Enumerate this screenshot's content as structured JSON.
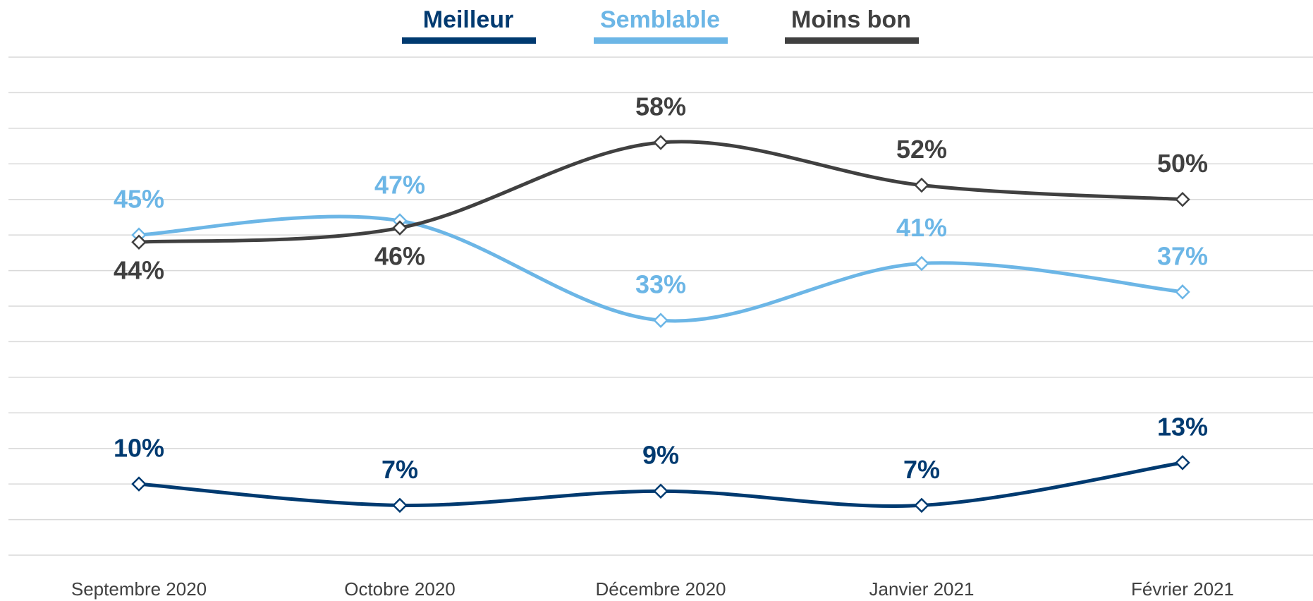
{
  "chart_data": {
    "type": "line",
    "categories": [
      "Septembre 2020",
      "Octobre 2020",
      "Décembre 2020",
      "Janvier 2021",
      "Février 2021"
    ],
    "series": [
      {
        "name": "Meilleur",
        "color": "#003a70",
        "values": [
          10,
          7,
          9,
          7,
          13
        ],
        "value_labels": [
          "10%",
          "7%",
          "9%",
          "7%",
          "13%"
        ]
      },
      {
        "name": "Semblable",
        "color": "#6cb6e6",
        "values": [
          45,
          47,
          33,
          41,
          37
        ],
        "value_labels": [
          "45%",
          "47%",
          "33%",
          "41%",
          "37%"
        ]
      },
      {
        "name": "Moins bon",
        "color": "#404040",
        "values": [
          44,
          46,
          58,
          52,
          50
        ],
        "value_labels": [
          "44%",
          "46%",
          "58%",
          "52%",
          "50%"
        ]
      }
    ],
    "ylim": [
      0,
      70
    ],
    "yticks": [
      0,
      5,
      10,
      15,
      20,
      25,
      30,
      35,
      40,
      45,
      50,
      55,
      60,
      65,
      70
    ],
    "grid": true,
    "smooth": true,
    "legend": "top"
  }
}
